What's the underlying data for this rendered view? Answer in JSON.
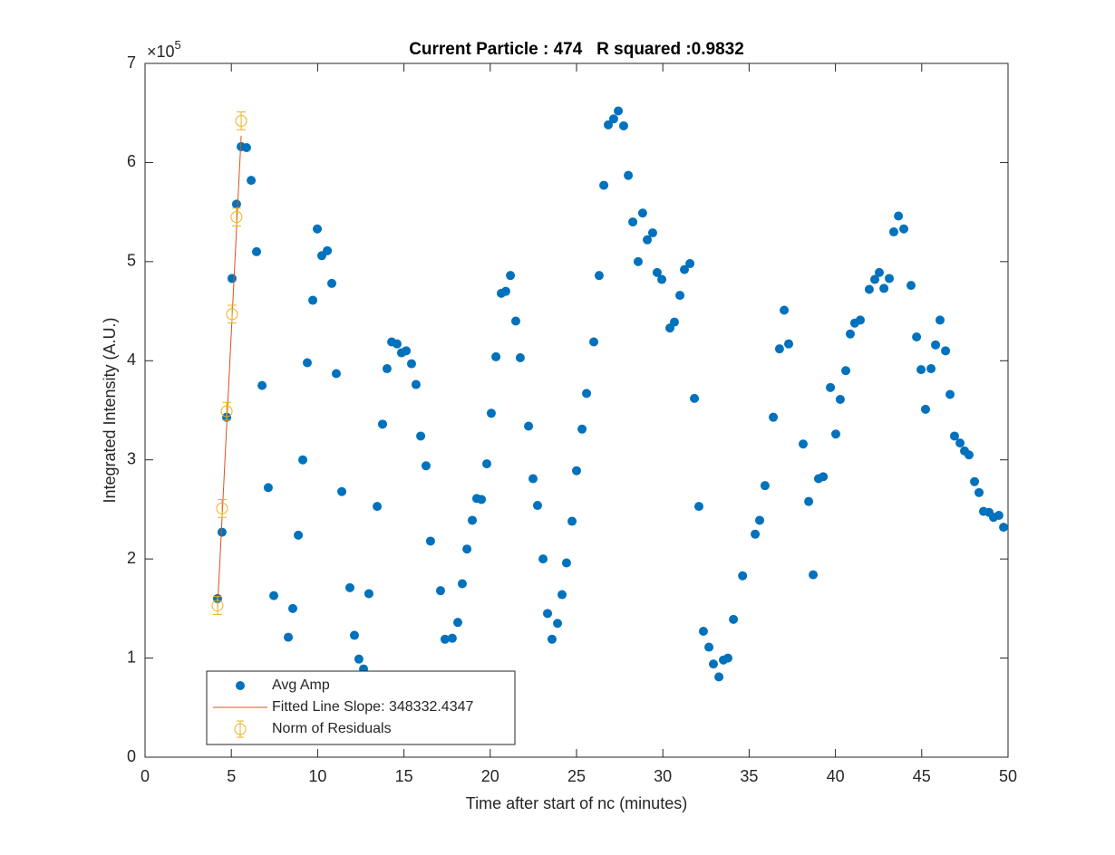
{
  "chart_data": {
    "type": "scatter",
    "title": "Current Particle : 474   R squared :0.9832",
    "x_label": "Time after start of nc (minutes)",
    "y_label": "Integrated Intensity (A.U.)",
    "y_exponent_base": "×10",
    "y_exponent": "5",
    "xlim": [
      0,
      50
    ],
    "ylim": [
      0,
      700000
    ],
    "xticks": [
      0,
      5,
      10,
      15,
      20,
      25,
      30,
      35,
      40,
      45,
      50
    ],
    "yticks": [
      0,
      {
        "value": 100000,
        "label": "1"
      },
      {
        "value": 200000,
        "label": "2"
      },
      {
        "value": 300000,
        "label": "3"
      },
      {
        "value": 400000,
        "label": "4"
      },
      {
        "value": 500000,
        "label": "5"
      },
      {
        "value": 600000,
        "label": "6"
      },
      {
        "value": 700000,
        "label": "7"
      }
    ],
    "grid": false,
    "legend_loc": "lower left",
    "series": [
      {
        "name": "Avg Amp",
        "kind": "scatter",
        "color": "#0072bd",
        "x": [
          4.2,
          4.46,
          4.73,
          5.04,
          5.3,
          5.57,
          5.88,
          6.15,
          6.46,
          6.78,
          7.14,
          7.46,
          8.3,
          8.56,
          8.88,
          9.14,
          9.4,
          9.72,
          9.98,
          10.24,
          10.56,
          10.82,
          11.08,
          11.4,
          11.87,
          12.13,
          12.39,
          12.66,
          12.97,
          13.45,
          13.76,
          14.02,
          14.29,
          14.6,
          14.86,
          15.13,
          15.44,
          15.7,
          15.97,
          16.28,
          16.54,
          17.12,
          17.38,
          17.8,
          18.12,
          18.38,
          18.65,
          18.96,
          19.22,
          19.49,
          19.8,
          20.06,
          20.33,
          20.64,
          20.9,
          21.17,
          21.48,
          21.74,
          22.22,
          22.48,
          22.74,
          23.06,
          23.32,
          23.58,
          23.9,
          24.16,
          24.42,
          24.74,
          25.0,
          25.32,
          25.58,
          26.0,
          26.31,
          26.58,
          26.84,
          27.15,
          27.42,
          27.73,
          28.0,
          28.26,
          28.57,
          28.83,
          29.1,
          29.41,
          29.67,
          29.94,
          30.41,
          30.67,
          30.99,
          31.25,
          31.57,
          31.83,
          32.09,
          32.35,
          32.67,
          32.93,
          33.25,
          33.51,
          33.77,
          34.09,
          34.62,
          35.35,
          35.61,
          35.92,
          36.4,
          36.76,
          37.03,
          37.29,
          38.13,
          38.45,
          38.71,
          39.02,
          39.29,
          39.71,
          40.02,
          40.28,
          40.6,
          40.86,
          41.12,
          41.44,
          41.96,
          42.28,
          42.54,
          42.81,
          43.12,
          43.38,
          43.65,
          43.96,
          44.38,
          44.7,
          44.96,
          45.22,
          45.54,
          45.8,
          46.06,
          46.38,
          46.64,
          46.9,
          47.22,
          47.48,
          47.74,
          48.06,
          48.32,
          48.58,
          48.9,
          49.16,
          49.47,
          49.74
        ],
        "values": [
          160000,
          227000,
          343000,
          483000,
          558000,
          616000,
          615000,
          582000,
          510000,
          375000,
          272000,
          163000,
          121000,
          150000,
          224000,
          300000,
          398000,
          461000,
          533000,
          506000,
          511000,
          478000,
          387000,
          268000,
          171000,
          123000,
          99000,
          89000,
          165000,
          253000,
          336000,
          392000,
          419000,
          417000,
          408000,
          410000,
          397000,
          376000,
          324000,
          294000,
          218000,
          168000,
          119000,
          120000,
          136000,
          175000,
          210000,
          239000,
          261000,
          260000,
          296000,
          347000,
          404000,
          468000,
          470000,
          486000,
          440000,
          403000,
          334000,
          281000,
          254000,
          200000,
          145000,
          119000,
          135000,
          164000,
          196000,
          238000,
          289000,
          331000,
          367000,
          419000,
          486000,
          577000,
          638000,
          644000,
          652000,
          637000,
          587000,
          540000,
          500000,
          549000,
          522000,
          529000,
          489000,
          482000,
          433000,
          439000,
          466000,
          492000,
          498000,
          362000,
          253000,
          127000,
          111000,
          94000,
          81000,
          98000,
          100000,
          139000,
          183000,
          225000,
          239000,
          274000,
          343000,
          412000,
          451000,
          417000,
          316000,
          258000,
          184000,
          281000,
          283000,
          373000,
          326000,
          361000,
          390000,
          427000,
          438000,
          441000,
          472000,
          482000,
          489000,
          473000,
          483000,
          530000,
          546000,
          533000,
          476000,
          424000,
          391000,
          351000,
          392000,
          416000,
          441000,
          410000,
          366000,
          324000,
          317000,
          309000,
          305000,
          278000,
          267000,
          248000,
          247000,
          242000,
          244000,
          232000
        ]
      },
      {
        "name": "Fitted Line Slope: 348332.4347",
        "kind": "line",
        "color": "#d95319",
        "x": [
          4.2,
          5.57
        ],
        "values": [
          150000,
          627000
        ]
      },
      {
        "name": "Norm of Residuals",
        "kind": "errorbar",
        "color": "#edb120",
        "x": [
          4.2,
          4.46,
          4.73,
          5.04,
          5.3,
          5.57
        ],
        "values": [
          153000,
          251000,
          349000,
          447000,
          545000,
          642000
        ],
        "errors": [
          9000,
          9000,
          9000,
          9000,
          9000,
          9000
        ]
      }
    ]
  }
}
